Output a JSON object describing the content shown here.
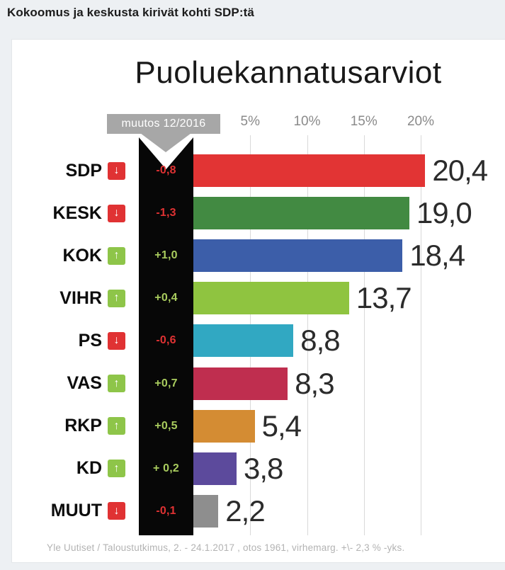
{
  "page": {
    "header": "Kokoomus ja keskusta kirivät kohti SDP:tä"
  },
  "chart": {
    "title": "Puoluekannatusarviot",
    "change_label": "muutos 12/2016",
    "footer": "Yle Uutiset / Taloustutkimus, 2. - 24.1.2017 , otos 1961, virhemarg. +\\- 2,3 % -yks."
  },
  "chart_data": {
    "type": "bar",
    "orientation": "horizontal",
    "title": "Puoluekannatusarviot",
    "categories": [
      "SDP",
      "KESK",
      "KOK",
      "VIHR",
      "PS",
      "VAS",
      "RKP",
      "KD",
      "MUUT"
    ],
    "values": [
      20.4,
      19.0,
      18.4,
      13.7,
      8.8,
      8.3,
      5.4,
      3.8,
      2.2
    ],
    "value_labels": [
      "20,4",
      "19,0",
      "18,4",
      "13,7",
      "8,8",
      "8,3",
      "5,4",
      "3,8",
      "2,2"
    ],
    "changes": [
      "-0,8",
      "-1,3",
      "+1,0",
      "+0,4",
      "-0,6",
      "+0,7",
      "+0,5",
      "+ 0,2",
      "-0,1"
    ],
    "change_directions": [
      "down",
      "down",
      "up",
      "up",
      "down",
      "up",
      "up",
      "up",
      "down"
    ],
    "bar_colors": [
      "#e23434",
      "#428a42",
      "#3c5ea9",
      "#8fc440",
      "#31a8c2",
      "#bf2e4f",
      "#d48c33",
      "#5c4a9c",
      "#8e8e8e"
    ],
    "x_ticks": [
      5,
      10,
      15,
      20
    ],
    "x_tick_labels": [
      "5%",
      "10%",
      "15%",
      "20%"
    ],
    "xlim": [
      0,
      21
    ],
    "grid": true,
    "legend": false,
    "subtitle": "muutos 12/2016",
    "source": "Yle Uutiset / Taloustutkimus, 2. - 24.1.2017 , otos 1961, virhemarg. +\\- 2,3 % -yks."
  },
  "colors": {
    "negative": "#e03233",
    "positive_box": "#8ec549",
    "positive_text": "#a9cc5e",
    "black_column": "#070707",
    "gray_label": "#a7a7a7",
    "page_background": "#edf0f3",
    "card_background": "#ffffff",
    "gridline": "#d9d9d9"
  },
  "icons": {
    "down": "↓",
    "up": "↑"
  }
}
